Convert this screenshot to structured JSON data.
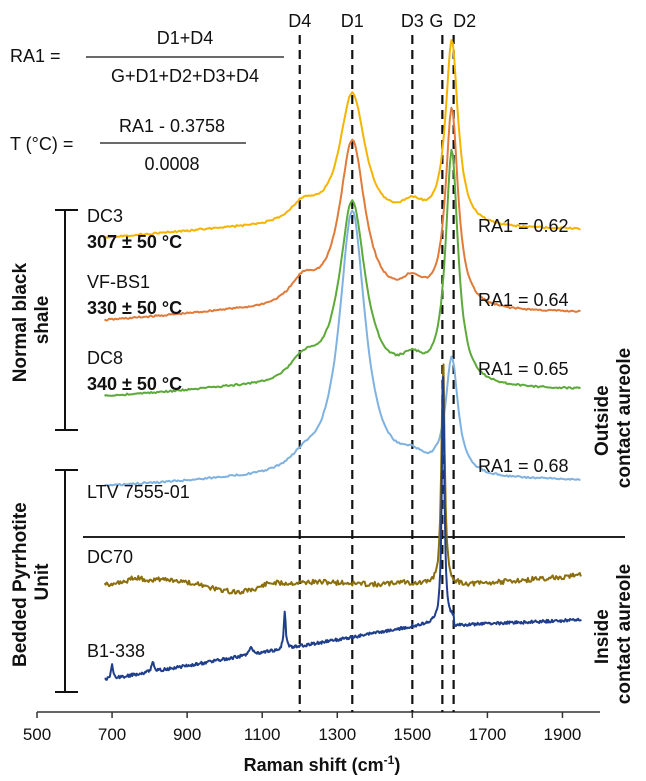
{
  "chart_data": {
    "type": "line",
    "title": "",
    "xlabel": "Raman shift (cm",
    "xlabel_sup": "-1",
    "xlabel_close": ")",
    "ylabel": "",
    "xlim": [
      500,
      2000
    ],
    "x_ticks": [
      "500",
      "700",
      "900",
      "1100",
      "1300",
      "1500",
      "1700",
      "1900"
    ],
    "x_tick_values": [
      500,
      700,
      900,
      1100,
      1300,
      1500,
      1700,
      1900
    ],
    "grid": false,
    "stacked_offset_spectra": true,
    "band_markers": [
      {
        "label": "D4",
        "x": 1200
      },
      {
        "label": "D1",
        "x": 1340
      },
      {
        "label": "D3",
        "x": 1500
      },
      {
        "label": "G",
        "x": 1580
      },
      {
        "label": "D2",
        "x": 1610
      }
    ],
    "series": [
      {
        "name": "DC3",
        "temperature": "307 ± 50 °C",
        "ra1": "RA1 = 0.62",
        "color": "#F5B400"
      },
      {
        "name": "VF-BS1",
        "temperature": "330 ± 50 °C",
        "ra1": "RA1 = 0.64",
        "color": "#E07B39"
      },
      {
        "name": "DC8",
        "temperature": "340 ± 50 °C",
        "ra1": "RA1 = 0.65",
        "color": "#5DAA3A"
      },
      {
        "name": "LTV 7555-01",
        "temperature": "",
        "ra1": "RA1 = 0.68",
        "color": "#7FB2E0"
      },
      {
        "name": "DC70",
        "temperature": "",
        "ra1": "",
        "color": "#8C6E0A"
      },
      {
        "name": "B1-338",
        "temperature": "",
        "ra1": "",
        "color": "#1F3F8C"
      }
    ],
    "groups": [
      {
        "label_lines": [
          "Normal black",
          "shale"
        ]
      },
      {
        "label_lines": [
          "Bedded Pyrrhotite",
          "Unit"
        ]
      }
    ],
    "side_labels": [
      {
        "label_lines": [
          "Outside",
          "contact aureole"
        ]
      },
      {
        "label_lines": [
          "Inside",
          "contact aureole"
        ]
      }
    ],
    "equations": {
      "ra1_lhs": "RA1 =",
      "ra1_num": "D1+D4",
      "ra1_den": "G+D1+D2+D3+D4",
      "t_lhs": "T (°C) =",
      "t_num": "RA1 - 0.3758",
      "t_den": "0.0008"
    }
  }
}
